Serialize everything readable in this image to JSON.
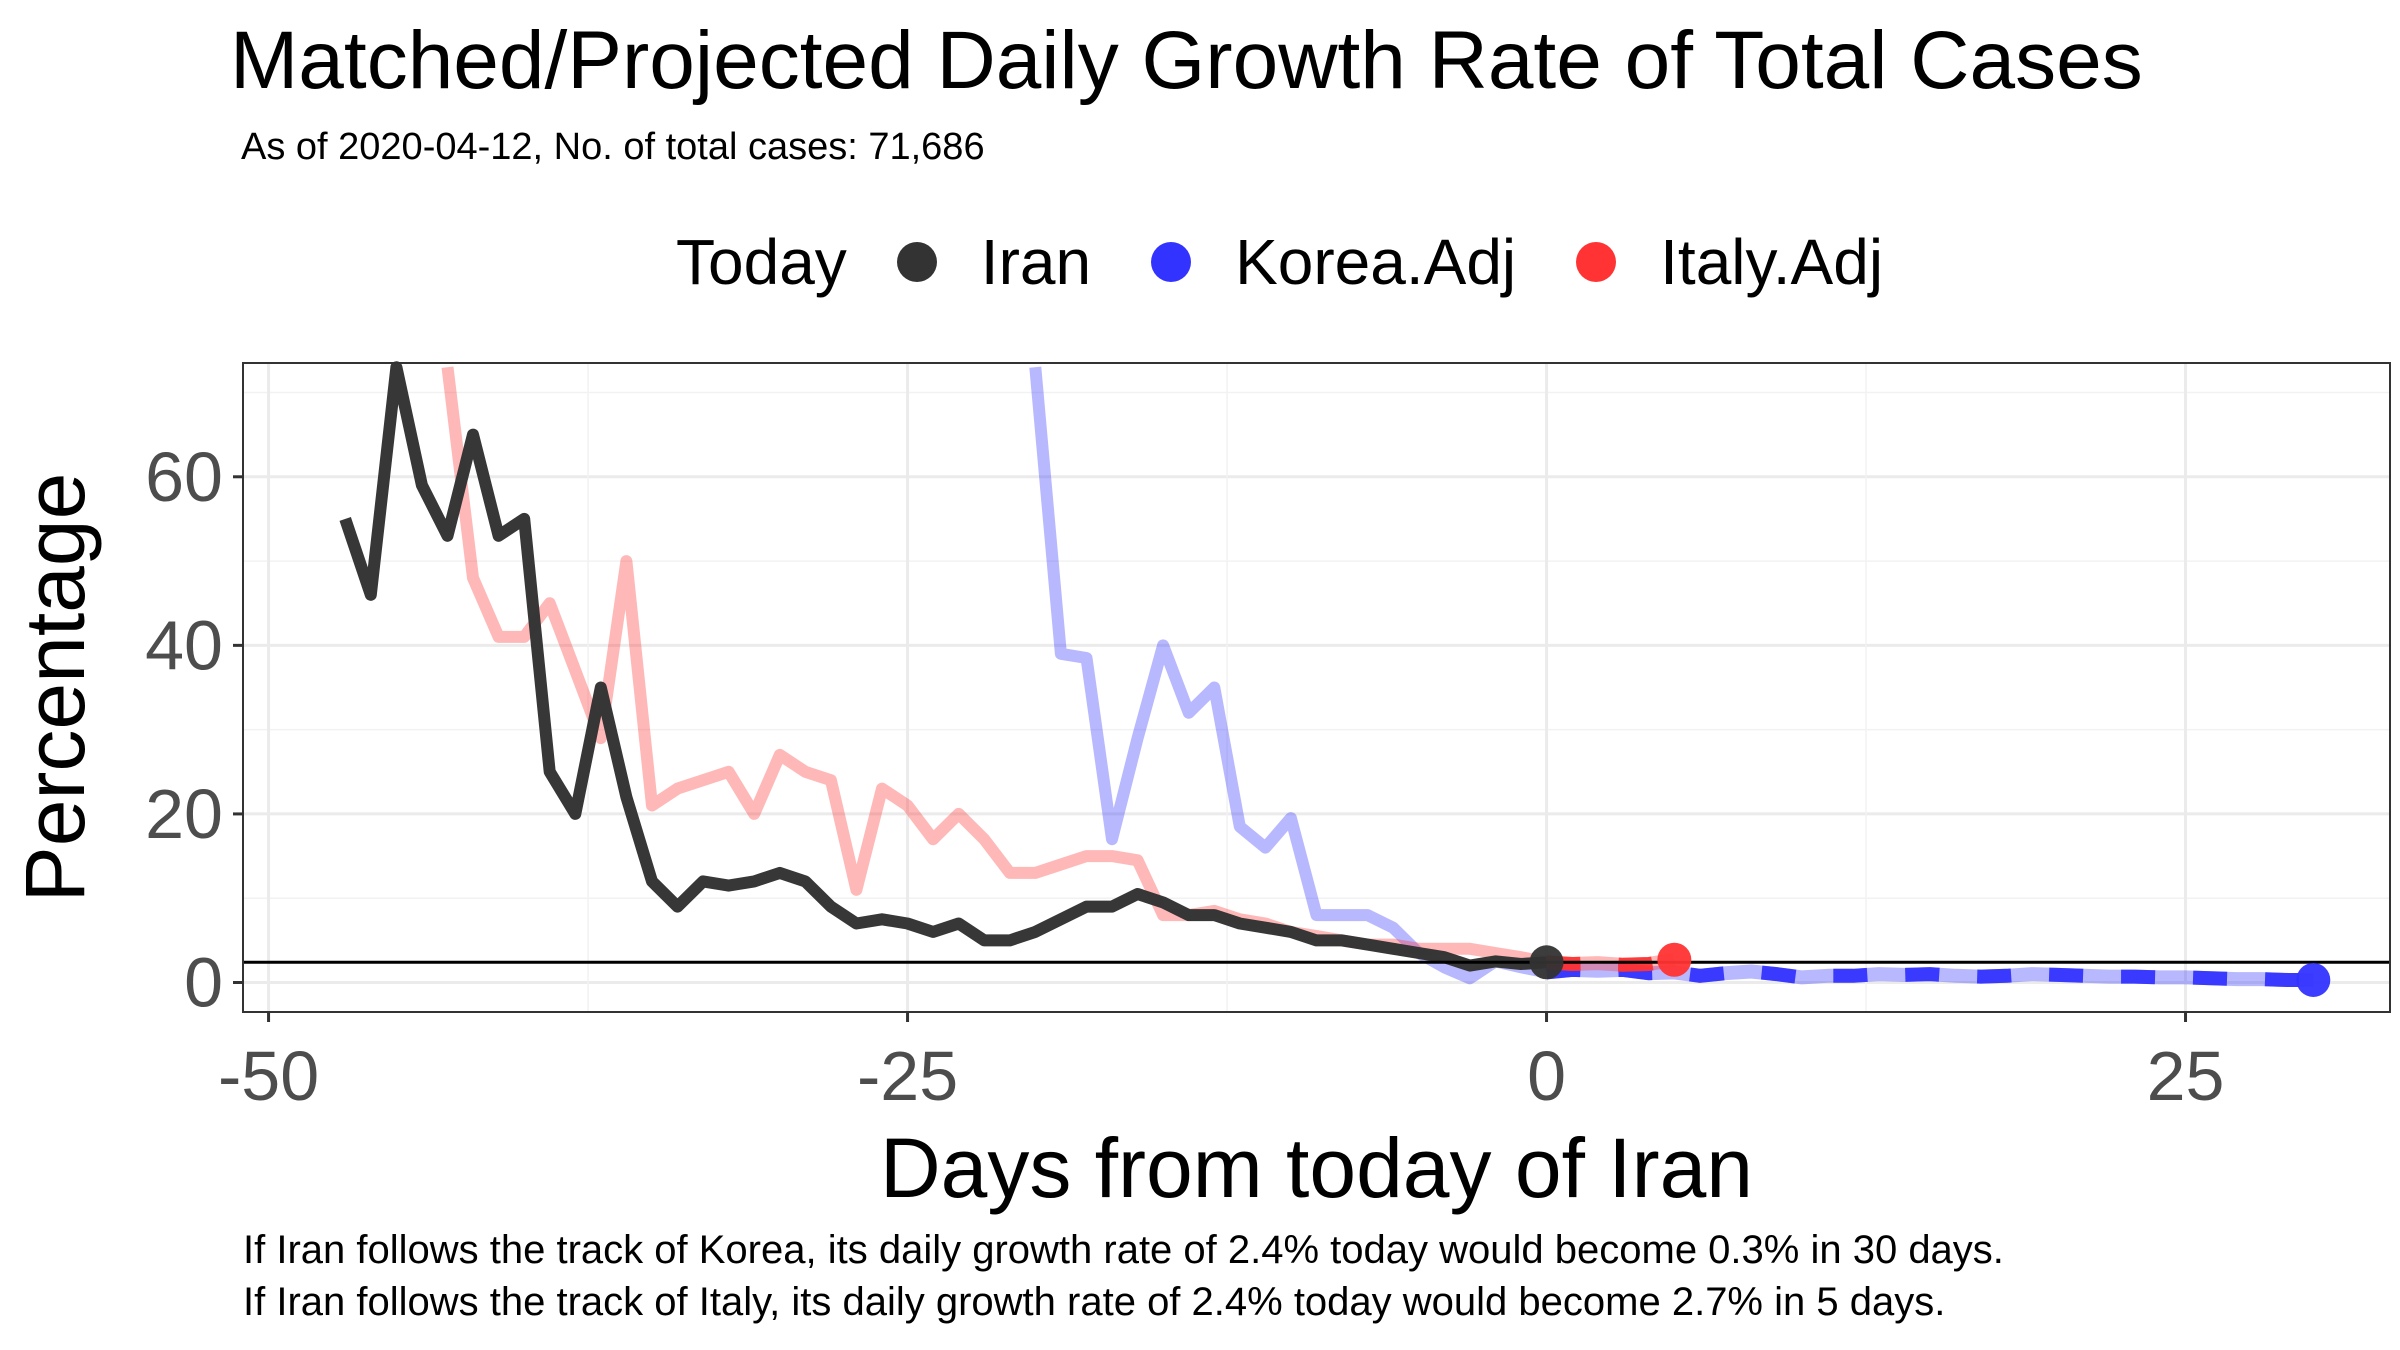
{
  "title": "Matched/Projected Daily Growth Rate of Total Cases",
  "subtitle": "As of 2020-04-12, No. of total cases: 71,686",
  "legend": {
    "title": "Today",
    "items": [
      {
        "label": "Iran",
        "color": "#333333"
      },
      {
        "label": "Korea.Adj",
        "color": "#3333ff"
      },
      {
        "label": "Italy.Adj",
        "color": "#ff3333"
      }
    ]
  },
  "notes": [
    "If Iran follows the track of Korea, its daily growth rate of 2.4% today would become 0.3% in 30 days.",
    "If Iran follows the track of Italy, its daily growth rate of 2.4% today would become 2.7% in 5 days."
  ],
  "chart_data": {
    "type": "line",
    "title": "Matched/Projected Daily Growth Rate of Total Cases",
    "subtitle": "As of 2020-04-12, No. of total cases: 71,686",
    "xlabel": "Days from today of Iran",
    "ylabel": "Percentage",
    "xlim": [
      -51,
      33
    ],
    "ylim": [
      -3.5,
      73.5
    ],
    "xticks": [
      -50,
      -25,
      0,
      25
    ],
    "yticks": [
      0,
      20,
      40,
      60
    ],
    "grid": true,
    "legend_position": "top",
    "reference_line_y": 2.4,
    "series": [
      {
        "name": "Iran",
        "color": "#333333",
        "x": [
          -47,
          -46,
          -45,
          -44,
          -43,
          -42,
          -41,
          -40,
          -39,
          -38,
          -37,
          -36,
          -35,
          -34,
          -33,
          -32,
          -31,
          -30,
          -29,
          -28,
          -27,
          -26,
          -25,
          -24,
          -23,
          -22,
          -21,
          -20,
          -19,
          -18,
          -17,
          -16,
          -15,
          -14,
          -13,
          -12,
          -11,
          -10,
          -9,
          -8,
          -7,
          -6,
          -5,
          -4,
          -3,
          -2,
          -1,
          0
        ],
        "y": [
          55,
          46,
          73,
          59,
          53,
          65,
          53,
          55,
          25,
          20,
          35,
          22,
          12,
          9,
          12,
          11.5,
          12,
          13,
          12,
          9,
          7,
          7.5,
          7,
          6,
          7,
          5,
          5,
          6,
          7.5,
          9,
          9,
          10.5,
          9.5,
          8,
          8,
          7,
          6.5,
          6,
          5,
          5,
          4.5,
          4,
          3.5,
          3,
          2,
          2.5,
          2.2,
          2.4
        ]
      },
      {
        "name": "Italy.Adj",
        "color": "#ff3333",
        "x": [
          -43,
          -42,
          -41,
          -40,
          -39,
          -38,
          -37,
          -36,
          -35,
          -34,
          -33,
          -32,
          -31,
          -30,
          -29,
          -28,
          -27,
          -26,
          -25,
          -24,
          -23,
          -22,
          -21,
          -20,
          -19,
          -18,
          -17,
          -16,
          -15,
          -14,
          -13,
          -12,
          -11,
          -10,
          -9,
          -8,
          -7,
          -6,
          -5,
          -4,
          -3,
          -2,
          -1,
          0,
          1,
          2,
          3,
          4,
          5
        ],
        "y": [
          73,
          48,
          41,
          41,
          45,
          37,
          29,
          50,
          21,
          23,
          24,
          25,
          20,
          27,
          25,
          24,
          11,
          23,
          21,
          17,
          20,
          17,
          13,
          13,
          14,
          15,
          15,
          14.5,
          8,
          8,
          8.5,
          7.5,
          7,
          6,
          5.5,
          5,
          4.5,
          4.5,
          4,
          4,
          4,
          3.5,
          3,
          2.4,
          2.2,
          2.3,
          2.1,
          2.2,
          2.7
        ]
      },
      {
        "name": "Korea.Adj",
        "color": "#3333ff",
        "x": [
          -20,
          -19,
          -18,
          -17,
          -16,
          -15,
          -14,
          -13,
          -12,
          -11,
          -10,
          -9,
          -8,
          -7,
          -6,
          -5,
          -4,
          -3,
          -2,
          -1,
          0,
          1,
          2,
          3,
          4,
          5,
          6,
          7,
          8,
          9,
          10,
          11,
          12,
          13,
          14,
          15,
          16,
          17,
          18,
          19,
          20,
          21,
          22,
          23,
          24,
          25,
          26,
          27,
          28,
          29,
          30
        ],
        "y": [
          73,
          39,
          38.5,
          17,
          29,
          40,
          32,
          35,
          18.5,
          16,
          19.5,
          8,
          8,
          8,
          6.5,
          3.5,
          1.8,
          0.5,
          2.5,
          1.8,
          1.2,
          1.5,
          1.4,
          1.5,
          1.1,
          1.2,
          0.8,
          1.1,
          1.3,
          1,
          0.6,
          0.8,
          0.8,
          1,
          0.9,
          1,
          0.8,
          0.7,
          0.8,
          1,
          0.9,
          0.8,
          0.7,
          0.7,
          0.6,
          0.6,
          0.5,
          0.4,
          0.4,
          0.3,
          0.3
        ]
      }
    ],
    "today_points": [
      {
        "series": "Iran",
        "x": 0,
        "y": 2.4
      },
      {
        "series": "Italy.Adj",
        "x": 5,
        "y": 2.7
      },
      {
        "series": "Korea.Adj",
        "x": 30,
        "y": 0.3
      }
    ]
  }
}
